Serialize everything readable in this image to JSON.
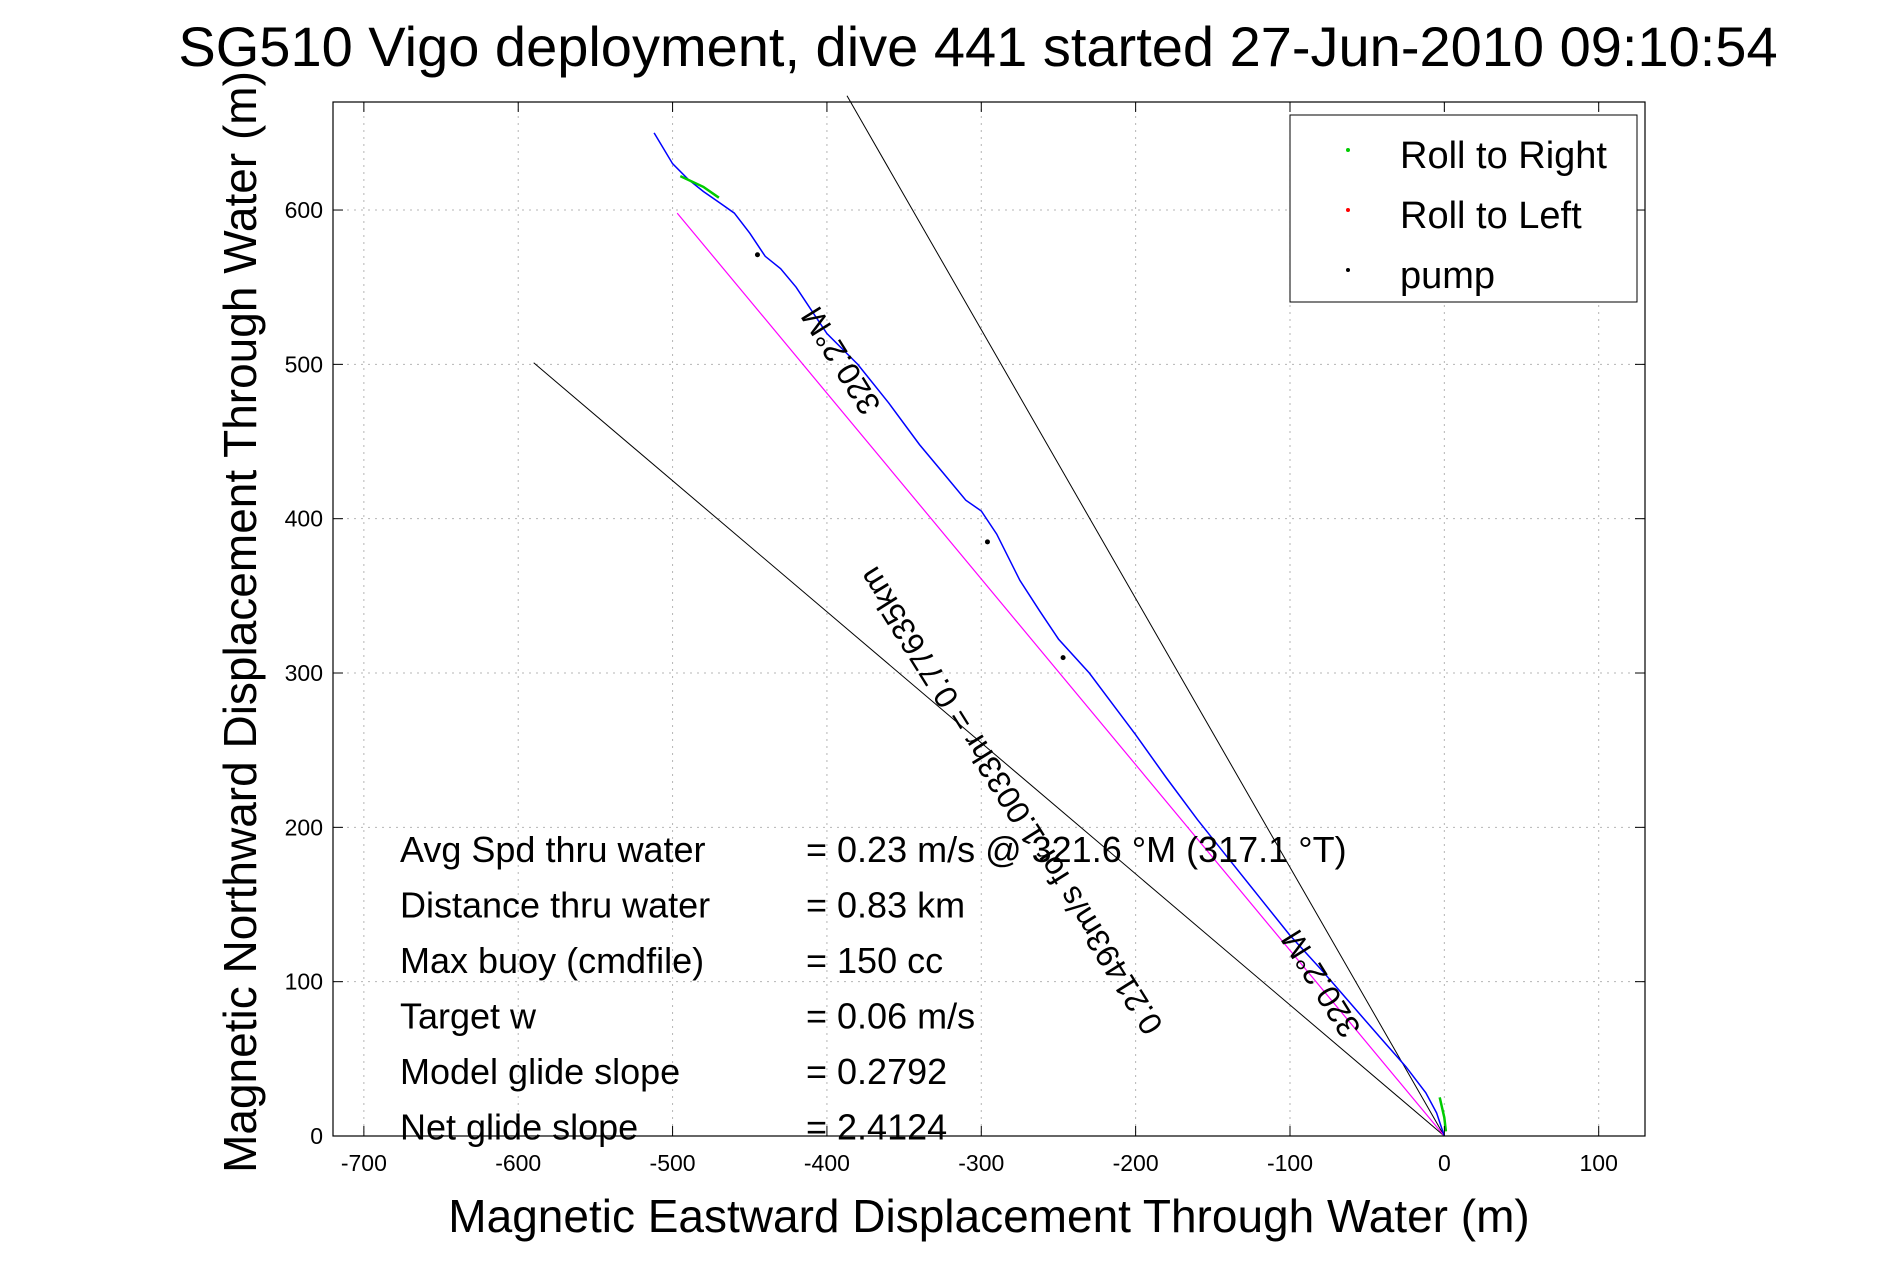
{
  "chart_data": {
    "type": "line",
    "title": "SG510 Vigo deployment, dive 441 started 27-Jun-2010 09:10:54",
    "xlabel": "Magnetic Eastward Displacement Through Water (m)",
    "ylabel": "Magnetic Northward Displacement Through Water (m)",
    "xlim": [
      -720,
      130
    ],
    "ylim": [
      0,
      670
    ],
    "xticks": [
      -700,
      -600,
      -500,
      -400,
      -300,
      -200,
      -100,
      0,
      100
    ],
    "yticks": [
      0,
      100,
      200,
      300,
      400,
      500,
      600
    ],
    "grid": true,
    "legend": {
      "placement": "top-right",
      "entries": [
        {
          "label": "Roll to Right",
          "color": "#00cc00"
        },
        {
          "label": "Roll to Left",
          "color": "#ff0000"
        },
        {
          "label": "pump",
          "color": "#000000"
        }
      ]
    },
    "track": {
      "color": "#0000ff",
      "x": [
        0,
        -5,
        -12,
        -25,
        -40,
        -60,
        -80,
        -100,
        -120,
        -140,
        -160,
        -180,
        -200,
        -215,
        -230,
        -250,
        -262,
        -275,
        -290,
        -300,
        -310,
        -325,
        -340,
        -360,
        -380,
        -400,
        -420,
        -430,
        -440,
        -450,
        -460,
        -470,
        -480,
        -490,
        -500,
        -512
      ],
      "y": [
        0,
        15,
        28,
        45,
        62,
        85,
        108,
        130,
        155,
        180,
        205,
        232,
        260,
        280,
        300,
        322,
        340,
        360,
        390,
        405,
        412,
        430,
        448,
        475,
        500,
        520,
        550,
        562,
        570,
        585,
        598,
        605,
        612,
        620,
        630,
        650
      ]
    },
    "roll_right_segments": [
      {
        "x": [
          -495,
          -480,
          -470
        ],
        "y": [
          622,
          615,
          608
        ]
      },
      {
        "x": [
          -3,
          0,
          1
        ],
        "y": [
          25,
          12,
          3
        ]
      }
    ],
    "pump_points": {
      "x": [
        -445,
        -296,
        -247
      ],
      "y": [
        571,
        385,
        310
      ]
    },
    "model_line": {
      "color": "#ff00ff",
      "x": [
        -497,
        0
      ],
      "y": [
        598,
        0
      ]
    },
    "reference_lines": [
      {
        "x": [
          -590,
          0
        ],
        "y": [
          501,
          0
        ]
      },
      {
        "x": [
          -387,
          0
        ],
        "y": [
          674,
          0
        ]
      }
    ],
    "annotations": [
      {
        "text": "320.2°M",
        "rotation": 238
      },
      {
        "text": "0.21493m/s for 1.0033hr = 0.77635km",
        "rotation": 238
      },
      {
        "text": "320.2°M",
        "rotation": 238
      }
    ],
    "stats": [
      {
        "label": "Avg Spd thru water",
        "value": "=  0.23 m/s @ 321.6 °M (317.1 °T)"
      },
      {
        "label": "Distance thru water",
        "value": "=  0.83 km"
      },
      {
        "label": "Max buoy (cmdfile)",
        "value": "= 150 cc"
      },
      {
        "label": "Target w",
        "value": "= 0.06 m/s"
      },
      {
        "label": "Model glide slope",
        "value": "= 0.2792"
      },
      {
        "label": "Net glide slope",
        "value": "= 2.4124"
      }
    ]
  }
}
